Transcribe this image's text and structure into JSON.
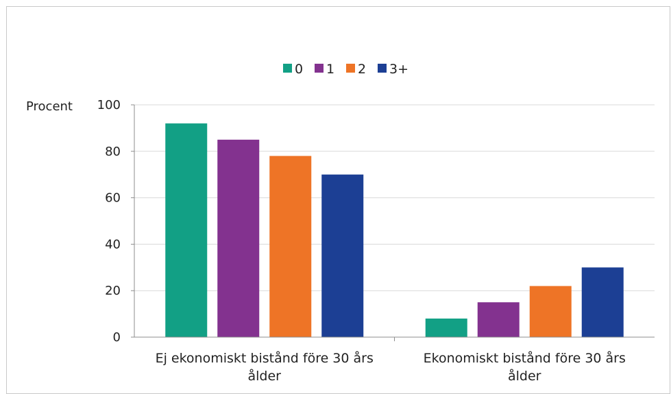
{
  "chart_data": {
    "type": "bar",
    "categories": [
      "Ej ekonomiskt bistånd före 30 års ålder",
      "Ekonomiskt bistånd före 30 års ålder"
    ],
    "category_lines": [
      [
        "Ej ekonomiskt bistånd före 30 års",
        "ålder"
      ],
      [
        "Ekonomiskt bistånd före 30 års",
        "ålder"
      ]
    ],
    "series": [
      {
        "name": "0",
        "values": [
          92,
          8
        ],
        "color": "#12a085"
      },
      {
        "name": "1",
        "values": [
          85,
          15
        ],
        "color": "#83328f"
      },
      {
        "name": "2",
        "values": [
          78,
          22
        ],
        "color": "#ee7426"
      },
      {
        "name": "3+",
        "values": [
          70,
          30
        ],
        "color": "#1c3f94"
      }
    ],
    "ylabel": "Procent",
    "ylim": [
      0,
      100
    ],
    "yticks": [
      0,
      20,
      40,
      60,
      80,
      100
    ],
    "grid": true,
    "legend_position": "top-center"
  }
}
